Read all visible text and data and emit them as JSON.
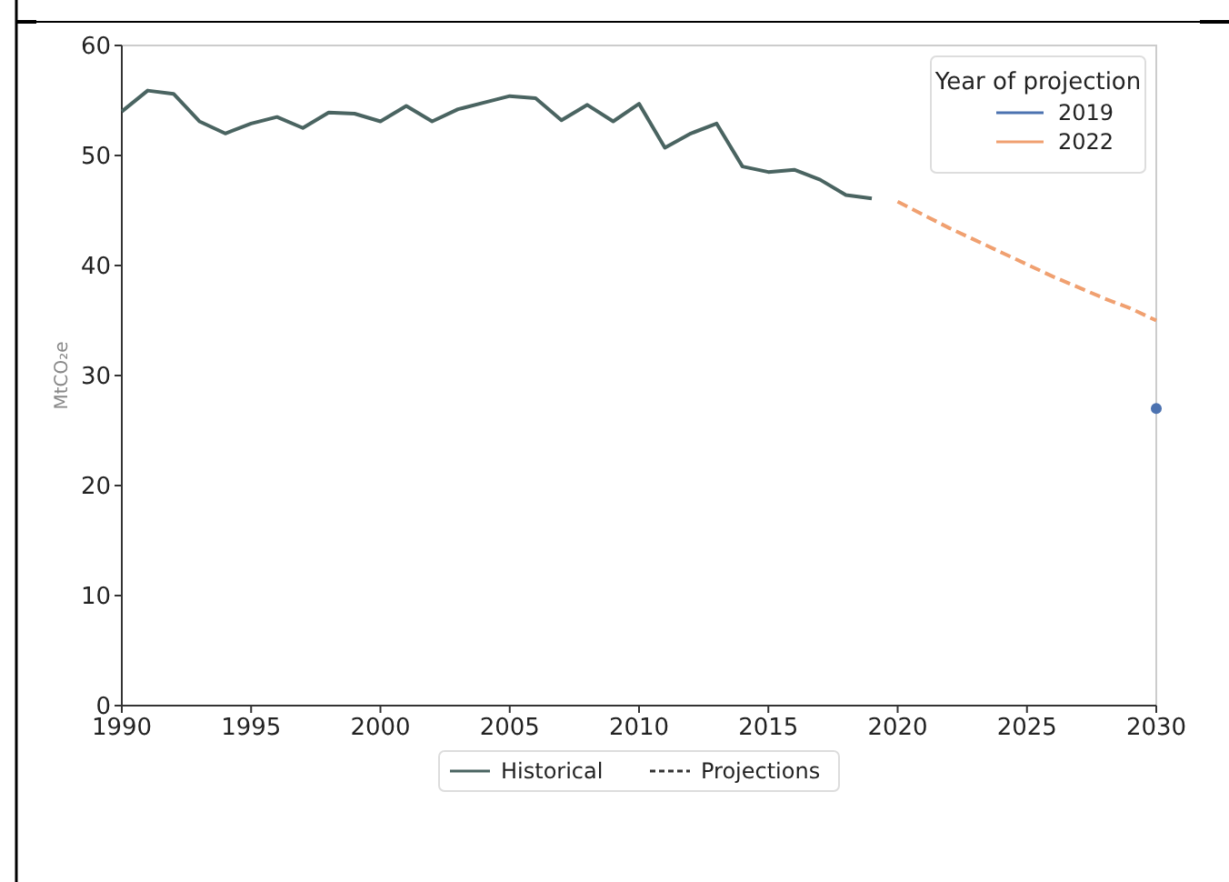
{
  "chart_data": {
    "type": "line",
    "ylabel": "MtCO₂e",
    "legend_title": "Year of projection",
    "legend": "top right",
    "xlim": [
      1990,
      2030
    ],
    "xticks": [
      1990,
      1995,
      2000,
      2005,
      2010,
      2015,
      2020,
      2025,
      2030
    ],
    "ylim": [
      0,
      60
    ],
    "yticks": [
      0,
      10,
      20,
      30,
      40,
      50,
      60
    ],
    "grid": false,
    "marker": "none",
    "annotations": [
      "Historical",
      "Projections"
    ],
    "series": [
      {
        "color": "#4a6461",
        "line_style": "solid",
        "x": [
          1990,
          1991,
          1992,
          1993,
          1994,
          1995,
          1996,
          1997,
          1998,
          1999,
          2000,
          2001,
          2002,
          2003,
          2004,
          2005,
          2006,
          2007,
          2008,
          2009,
          2010,
          2011,
          2012,
          2013,
          2014,
          2015,
          2016,
          2017,
          2018,
          2019
        ],
        "values": [
          54.0,
          55.9,
          55.6,
          53.1,
          52.0,
          52.9,
          53.5,
          52.5,
          53.9,
          53.8,
          53.1,
          54.5,
          53.1,
          54.2,
          54.8,
          55.4,
          55.2,
          53.2,
          54.6,
          53.1,
          54.7,
          50.7,
          52.0,
          52.9,
          49.0,
          48.5,
          48.7,
          47.8,
          46.4,
          46.1
        ]
      },
      {
        "name": "2019",
        "color": "#4c72b0",
        "type": "scatter",
        "marker": "circle",
        "line_style": "dashed",
        "x": [
          2030
        ],
        "values": [
          27.0
        ]
      },
      {
        "name": "2022",
        "color": "#f0a070",
        "line_style": "dashed",
        "x": [
          2020,
          2021,
          2022,
          2023,
          2024,
          2025,
          2026,
          2027,
          2028,
          2029,
          2030
        ],
        "values": [
          45.8,
          44.6,
          43.4,
          42.3,
          41.2,
          40.1,
          39.0,
          38.0,
          37.0,
          36.1,
          35.0
        ]
      }
    ]
  }
}
